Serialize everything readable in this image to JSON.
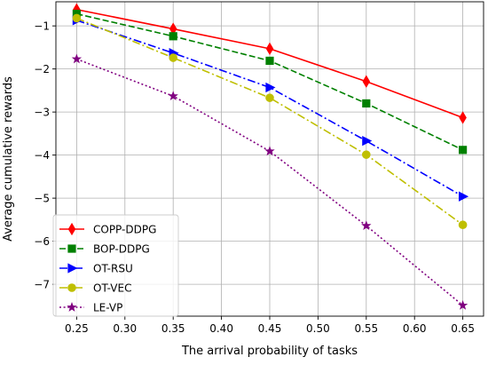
{
  "chart_data": {
    "type": "line",
    "title": "",
    "xlabel": "The arrival probability of tasks",
    "ylabel": "Average cumulative rewards",
    "x": [
      0.25,
      0.35,
      0.45,
      0.55,
      0.65
    ],
    "x_ticks": [
      0.25,
      0.3,
      0.35,
      0.4,
      0.45,
      0.5,
      0.55,
      0.6,
      0.65
    ],
    "x_tick_labels": [
      "0.25",
      "0.30",
      "0.35",
      "0.40",
      "0.45",
      "0.50",
      "0.55",
      "0.60",
      "0.65"
    ],
    "y_ticks": [
      -7,
      -6,
      -5,
      -4,
      -3,
      -2,
      -1
    ],
    "y_tick_labels": [
      "−7",
      "−6",
      "−5",
      "−4",
      "−3",
      "−2",
      "−1"
    ],
    "xlim": [
      0.2285,
      0.6715
    ],
    "ylim": [
      -7.74,
      -0.44
    ],
    "grid": true,
    "legend_position": "lower-left",
    "series": [
      {
        "name": "COPP-DDPG",
        "values": [
          -0.62,
          -1.07,
          -1.53,
          -2.29,
          -3.13
        ],
        "color": "#ff0000",
        "linestyle": "solid",
        "marker": "thin_diamond"
      },
      {
        "name": "BOP-DDPG",
        "values": [
          -0.72,
          -1.24,
          -1.81,
          -2.8,
          -3.88
        ],
        "color": "#008000",
        "linestyle": "dashed",
        "marker": "square"
      },
      {
        "name": "OT-RSU",
        "values": [
          -0.87,
          -1.63,
          -2.43,
          -3.67,
          -4.96
        ],
        "color": "#0000ff",
        "linestyle": "dashdot",
        "marker": "triangle_right"
      },
      {
        "name": "OT-VEC",
        "values": [
          -0.82,
          -1.74,
          -2.67,
          -3.99,
          -5.62
        ],
        "color": "#bfbf00",
        "linestyle": "dashdot",
        "marker": "circle"
      },
      {
        "name": "LE-VP",
        "values": [
          -1.77,
          -2.63,
          -3.91,
          -5.64,
          -7.49
        ],
        "color": "#800080",
        "linestyle": "dotted",
        "marker": "star"
      }
    ]
  }
}
